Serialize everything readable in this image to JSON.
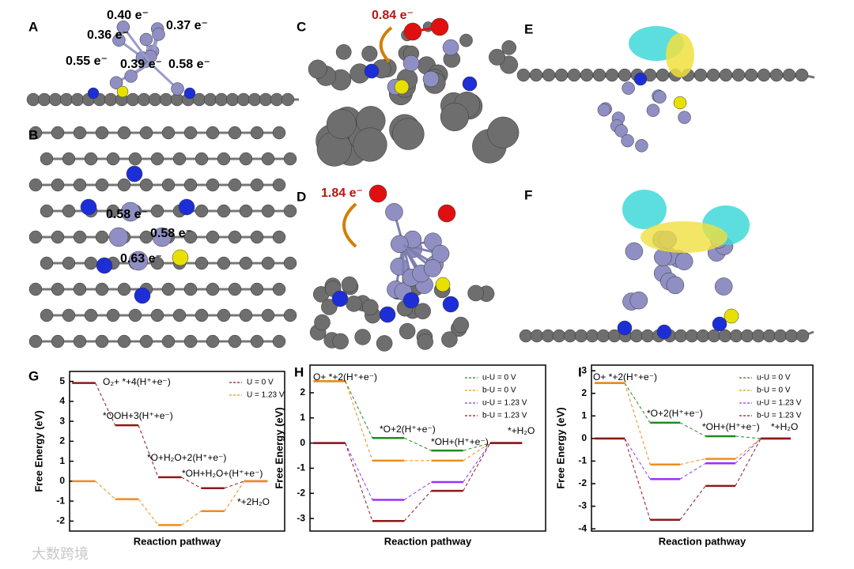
{
  "panels": [
    {
      "label": "A",
      "annotations": [
        "0.40 e⁻",
        "0.37 e⁻",
        "0.36 e⁻",
        "0.55 e⁻",
        "0.39 e⁻",
        "0.58 e⁻"
      ]
    },
    {
      "label": "B",
      "annotations": [
        "0.58 e⁻",
        "0.58 e⁻",
        "0.63 e⁻"
      ]
    },
    {
      "label": "C",
      "annotations": [
        "0.84 e⁻"
      ]
    },
    {
      "label": "D",
      "annotations": [
        "1.84 e⁻"
      ]
    },
    {
      "label": "E",
      "annotations": []
    },
    {
      "label": "F",
      "annotations": []
    }
  ],
  "watermark": "大数跨境",
  "chart_data": [
    {
      "type": "energy-levels",
      "panel_label": "G",
      "xlabel": "Reaction pathway",
      "ylabel": "Free Energy (eV)",
      "categories": [
        null,
        null,
        null,
        null,
        null
      ],
      "annotations": [
        "O₂+ *+4(H⁺+e⁻)",
        "*OOH+3(H⁺+e⁻)",
        "*O+H₂O+2(H⁺+e⁻)",
        "*OH+H₂O+(H⁺+e⁻)",
        "*+2H₂O"
      ],
      "ylim": [
        -2.5,
        5.5
      ],
      "yticks": [
        -2,
        -1,
        0,
        1,
        2,
        3,
        4,
        5
      ],
      "series": [
        {
          "name": "U = 0 V",
          "color": "#8b1a1a",
          "values": [
            4.92,
            2.8,
            0.2,
            -0.35,
            0
          ]
        },
        {
          "name": "U = 1.23 V",
          "color": "#f08c1e",
          "values": [
            0,
            -0.9,
            -2.2,
            -1.5,
            0
          ]
        }
      ]
    },
    {
      "type": "energy-levels",
      "panel_label": "H",
      "xlabel": "Reaction pathway",
      "ylabel": "Free Energy (eV)",
      "categories": [
        null,
        null,
        null,
        null
      ],
      "annotations": [
        "O+ *+2(H⁺+e⁻)",
        "*O+2(H⁺+e⁻)",
        "*OH+(H⁺+e⁻)",
        "*+H₂O"
      ],
      "ylim": [
        -3.5,
        3.1
      ],
      "yticks": [
        -3,
        -2,
        -1,
        0,
        1,
        2
      ],
      "series": [
        {
          "name": "u-U = 0 V",
          "color": "#1e8c1e",
          "values": [
            2.46,
            0.2,
            -0.3,
            0
          ]
        },
        {
          "name": "b-U = 0 V",
          "color": "#f08c1e",
          "values": [
            2.46,
            -0.7,
            -0.7,
            0
          ]
        },
        {
          "name": "u-U = 1.23 V",
          "color": "#9b30ff",
          "values": [
            0,
            -2.26,
            -1.55,
            0
          ]
        },
        {
          "name": "b-U = 1.23 V",
          "color": "#8b1a1a",
          "values": [
            0,
            -3.1,
            -1.9,
            0
          ]
        }
      ]
    },
    {
      "type": "energy-levels",
      "panel_label": "I",
      "xlabel": "Reaction pathway",
      "ylabel": "Free Energy (eV)",
      "categories": [
        null,
        null,
        null,
        null
      ],
      "annotations": [
        "O+ *+2(H⁺+e⁻)",
        "*O+2(H⁺+e⁻)",
        "*OH+(H⁺+e⁻)",
        "*+H₂O"
      ],
      "ylim": [
        -4.1,
        3.25
      ],
      "yticks": [
        -4,
        -3,
        -2,
        -1,
        0,
        1,
        2,
        3
      ],
      "series": [
        {
          "name": "u-U = 0 V",
          "color": "#1e8c1e",
          "values": [
            2.46,
            0.7,
            0.1,
            0
          ]
        },
        {
          "name": "b-U = 0 V",
          "color": "#f08c1e",
          "values": [
            2.46,
            -1.15,
            -0.9,
            0
          ]
        },
        {
          "name": "u-U = 1.23 V",
          "color": "#9b30ff",
          "values": [
            0,
            -1.8,
            -1.1,
            0
          ]
        },
        {
          "name": "b-U = 1.23 V",
          "color": "#8b1a1a",
          "values": [
            0,
            -3.6,
            -2.1,
            0
          ]
        }
      ]
    }
  ]
}
